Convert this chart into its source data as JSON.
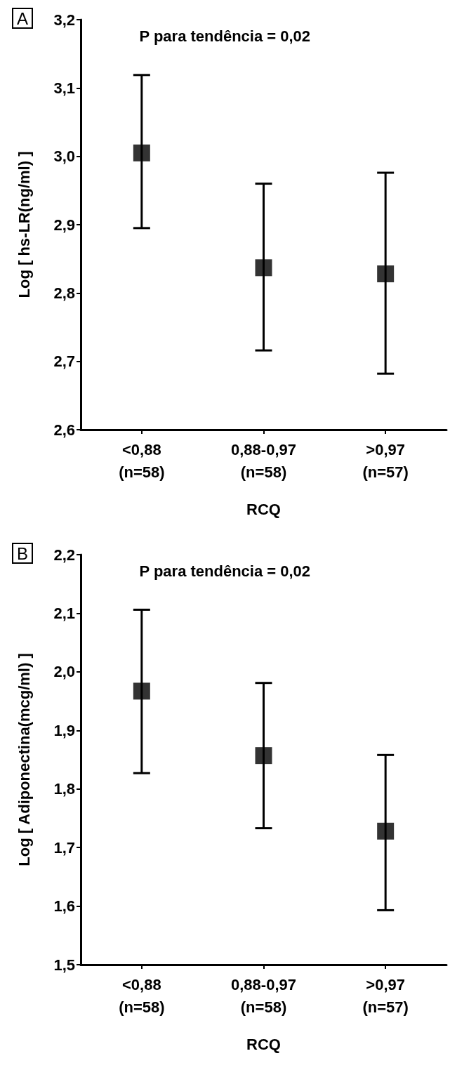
{
  "chart_data": [
    {
      "type": "scatter",
      "title": "A",
      "annotations": [
        "P para tendência = 0,02"
      ],
      "xlabel": "RCQ",
      "ylabel": "Log [ hs-LR(ng/ml) ]",
      "categories": [
        "<0,88\n(n=58)",
        "0,88-0,97\n(n=58)",
        ">0,97\n(n=57)"
      ],
      "values": [
        3.005,
        2.837,
        2.828
      ],
      "errors": [
        [
          2.895,
          3.119
        ],
        [
          2.716,
          2.96
        ],
        [
          2.682,
          2.976
        ]
      ],
      "color": "#000000",
      "marker": "square",
      "ylim": [
        2.6,
        3.2
      ],
      "yticks": [
        {
          "value": 2.6,
          "label": "2,6"
        },
        {
          "value": 2.7,
          "label": "2,7"
        },
        {
          "value": 2.8,
          "label": "2,8"
        },
        {
          "value": 2.9,
          "label": "2,9"
        },
        {
          "value": 3.0,
          "label": "3,0"
        },
        {
          "value": 3.1,
          "label": "3,1"
        },
        {
          "value": 3.2,
          "label": "3,2"
        }
      ]
    },
    {
      "type": "scatter",
      "title": "B",
      "annotations": [
        "P para tendência = 0,02"
      ],
      "xlabel": "RCQ",
      "ylabel": "Log [ Adiponectina(mcg/ml) ]",
      "categories": [
        "<0,88\n(n=58)",
        "0,88-0,97\n(n=58)",
        ">0,97\n(n=57)"
      ],
      "values": [
        1.967,
        1.857,
        1.728
      ],
      "errors": [
        [
          1.827,
          2.106
        ],
        [
          1.733,
          1.981
        ],
        [
          1.593,
          1.858
        ]
      ],
      "color": "#000000",
      "marker": "square",
      "ylim": [
        1.5,
        2.2
      ],
      "yticks": [
        {
          "value": 1.5,
          "label": "1,5"
        },
        {
          "value": 1.6,
          "label": "1,6"
        },
        {
          "value": 1.7,
          "label": "1,7"
        },
        {
          "value": 1.8,
          "label": "1,8"
        },
        {
          "value": 1.9,
          "label": "1,9"
        },
        {
          "value": 2.0,
          "label": "2,0"
        },
        {
          "value": 2.1,
          "label": "2,1"
        },
        {
          "value": 2.2,
          "label": "2,2"
        }
      ]
    }
  ]
}
